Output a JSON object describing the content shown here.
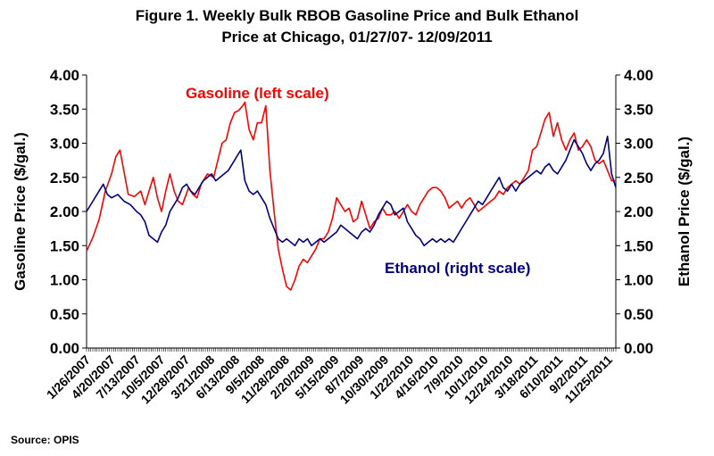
{
  "page": {
    "title_line1": "Figure 1. Weekly Bulk RBOB Gasoline Price and Bulk Ethanol",
    "title_line2": "Price at Chicago, 01/27/07- 12/09/2011",
    "source": "Source: OPIS"
  },
  "chart_data": {
    "type": "line",
    "title": "Figure 1. Weekly Bulk RBOB Gasoline Price and Bulk Ethanol Price at Chicago, 01/27/07- 12/09/2011",
    "ylabel_left": "Gasoline Price ($/gal.)",
    "ylabel_right": "Ethanol Price ($/gal.)",
    "ylim": [
      0,
      4
    ],
    "yticks": [
      "0.00",
      "0.50",
      "1.00",
      "1.50",
      "2.00",
      "2.50",
      "3.00",
      "3.50",
      "4.00"
    ],
    "xlim": [
      "2007-01-26",
      "2011-12-09"
    ],
    "xtick_labels": [
      "1/26/2007",
      "4/20/2007",
      "7/13/2007",
      "10/5/2007",
      "12/28/2007",
      "3/21/2008",
      "6/13/2008",
      "9/5/2008",
      "11/28/2008",
      "2/20/2009",
      "5/15/2009",
      "8/7/2009",
      "10/30/2009",
      "1/22/2010",
      "4/16/2010",
      "7/9/2010",
      "10/1/2010",
      "12/24/2010",
      "3/18/2011",
      "6/10/2011",
      "9/2/2011",
      "11/25/2011"
    ],
    "grid": false,
    "colors": {
      "gasoline": "#ff0000",
      "ethanol": "#000080"
    },
    "annotations": [
      {
        "text": "Gasoline (left scale)",
        "series": "gasoline"
      },
      {
        "text": "Ethanol (right scale)",
        "series": "ethanol"
      }
    ],
    "series": [
      {
        "name": "Gasoline (left scale)",
        "key": "gasoline",
        "color": "#ff0000",
        "points": [
          [
            "2007-01-26",
            1.42
          ],
          [
            "2007-02-16",
            1.62
          ],
          [
            "2007-03-09",
            1.88
          ],
          [
            "2007-03-30",
            2.3
          ],
          [
            "2007-04-20",
            2.55
          ],
          [
            "2007-05-04",
            2.8
          ],
          [
            "2007-05-18",
            2.9
          ],
          [
            "2007-06-01",
            2.58
          ],
          [
            "2007-06-15",
            2.25
          ],
          [
            "2007-07-06",
            2.22
          ],
          [
            "2007-07-27",
            2.3
          ],
          [
            "2007-08-10",
            2.1
          ],
          [
            "2007-08-24",
            2.3
          ],
          [
            "2007-09-07",
            2.5
          ],
          [
            "2007-09-21",
            2.2
          ],
          [
            "2007-10-05",
            2.0
          ],
          [
            "2007-10-19",
            2.3
          ],
          [
            "2007-11-02",
            2.55
          ],
          [
            "2007-11-16",
            2.3
          ],
          [
            "2007-11-30",
            2.15
          ],
          [
            "2007-12-14",
            2.1
          ],
          [
            "2008-01-04",
            2.35
          ],
          [
            "2008-01-18",
            2.25
          ],
          [
            "2008-02-01",
            2.2
          ],
          [
            "2008-02-15",
            2.4
          ],
          [
            "2008-03-07",
            2.55
          ],
          [
            "2008-03-28",
            2.5
          ],
          [
            "2008-04-11",
            2.75
          ],
          [
            "2008-04-25",
            3.0
          ],
          [
            "2008-05-09",
            3.05
          ],
          [
            "2008-05-23",
            3.3
          ],
          [
            "2008-06-06",
            3.45
          ],
          [
            "2008-06-20",
            3.48
          ],
          [
            "2008-07-04",
            3.55
          ],
          [
            "2008-07-11",
            3.6
          ],
          [
            "2008-07-25",
            3.2
          ],
          [
            "2008-08-08",
            3.05
          ],
          [
            "2008-08-22",
            3.3
          ],
          [
            "2008-09-05",
            3.3
          ],
          [
            "2008-09-19",
            3.55
          ],
          [
            "2008-10-03",
            2.6
          ],
          [
            "2008-10-17",
            2.0
          ],
          [
            "2008-10-31",
            1.45
          ],
          [
            "2008-11-14",
            1.15
          ],
          [
            "2008-11-28",
            0.9
          ],
          [
            "2008-12-12",
            0.85
          ],
          [
            "2008-12-26",
            1.0
          ],
          [
            "2009-01-09",
            1.2
          ],
          [
            "2009-01-23",
            1.3
          ],
          [
            "2009-02-06",
            1.25
          ],
          [
            "2009-02-20",
            1.35
          ],
          [
            "2009-03-06",
            1.45
          ],
          [
            "2009-03-20",
            1.6
          ],
          [
            "2009-04-03",
            1.6
          ],
          [
            "2009-04-17",
            1.7
          ],
          [
            "2009-05-01",
            1.9
          ],
          [
            "2009-05-15",
            2.2
          ],
          [
            "2009-05-29",
            2.1
          ],
          [
            "2009-06-12",
            2.0
          ],
          [
            "2009-06-26",
            2.05
          ],
          [
            "2009-07-10",
            1.85
          ],
          [
            "2009-07-24",
            1.9
          ],
          [
            "2009-08-07",
            2.15
          ],
          [
            "2009-08-21",
            1.95
          ],
          [
            "2009-09-04",
            1.75
          ],
          [
            "2009-09-18",
            1.85
          ],
          [
            "2009-10-02",
            1.9
          ],
          [
            "2009-10-16",
            2.05
          ],
          [
            "2009-10-30",
            1.95
          ],
          [
            "2009-11-13",
            1.95
          ],
          [
            "2009-11-27",
            2.0
          ],
          [
            "2009-12-11",
            1.9
          ],
          [
            "2009-12-25",
            2.0
          ],
          [
            "2010-01-08",
            2.1
          ],
          [
            "2010-01-22",
            2.0
          ],
          [
            "2010-02-05",
            1.95
          ],
          [
            "2010-02-19",
            2.1
          ],
          [
            "2010-03-05",
            2.2
          ],
          [
            "2010-03-19",
            2.3
          ],
          [
            "2010-04-02",
            2.35
          ],
          [
            "2010-04-16",
            2.35
          ],
          [
            "2010-04-30",
            2.3
          ],
          [
            "2010-05-14",
            2.2
          ],
          [
            "2010-05-28",
            2.05
          ],
          [
            "2010-06-11",
            2.1
          ],
          [
            "2010-06-25",
            2.15
          ],
          [
            "2010-07-09",
            2.05
          ],
          [
            "2010-07-23",
            2.15
          ],
          [
            "2010-08-06",
            2.2
          ],
          [
            "2010-08-20",
            2.1
          ],
          [
            "2010-09-03",
            2.0
          ],
          [
            "2010-09-17",
            2.05
          ],
          [
            "2010-10-01",
            2.1
          ],
          [
            "2010-10-15",
            2.15
          ],
          [
            "2010-10-29",
            2.2
          ],
          [
            "2010-11-12",
            2.3
          ],
          [
            "2010-11-26",
            2.25
          ],
          [
            "2010-12-10",
            2.35
          ],
          [
            "2010-12-24",
            2.4
          ],
          [
            "2011-01-07",
            2.45
          ],
          [
            "2011-01-21",
            2.4
          ],
          [
            "2011-02-04",
            2.5
          ],
          [
            "2011-02-18",
            2.6
          ],
          [
            "2011-03-04",
            2.9
          ],
          [
            "2011-03-18",
            2.95
          ],
          [
            "2011-04-01",
            3.15
          ],
          [
            "2011-04-15",
            3.35
          ],
          [
            "2011-04-29",
            3.45
          ],
          [
            "2011-05-13",
            3.1
          ],
          [
            "2011-05-27",
            3.3
          ],
          [
            "2011-06-10",
            3.05
          ],
          [
            "2011-06-24",
            2.9
          ],
          [
            "2011-07-08",
            3.05
          ],
          [
            "2011-07-22",
            3.15
          ],
          [
            "2011-08-05",
            2.9
          ],
          [
            "2011-08-19",
            2.95
          ],
          [
            "2011-09-02",
            3.05
          ],
          [
            "2011-09-16",
            2.95
          ],
          [
            "2011-09-30",
            2.75
          ],
          [
            "2011-10-14",
            2.7
          ],
          [
            "2011-10-28",
            2.75
          ],
          [
            "2011-11-11",
            2.6
          ],
          [
            "2011-11-25",
            2.45
          ],
          [
            "2011-12-09",
            2.45
          ]
        ]
      },
      {
        "name": "Ethanol (right scale)",
        "key": "ethanol",
        "color": "#000080",
        "points": [
          [
            "2007-01-26",
            2.0
          ],
          [
            "2007-02-16",
            2.15
          ],
          [
            "2007-03-09",
            2.3
          ],
          [
            "2007-03-23",
            2.4
          ],
          [
            "2007-04-06",
            2.25
          ],
          [
            "2007-04-20",
            2.2
          ],
          [
            "2007-05-11",
            2.25
          ],
          [
            "2007-06-01",
            2.15
          ],
          [
            "2007-06-22",
            2.1
          ],
          [
            "2007-07-13",
            2.0
          ],
          [
            "2007-07-27",
            1.95
          ],
          [
            "2007-08-10",
            1.85
          ],
          [
            "2007-08-24",
            1.65
          ],
          [
            "2007-09-07",
            1.6
          ],
          [
            "2007-09-21",
            1.55
          ],
          [
            "2007-10-05",
            1.7
          ],
          [
            "2007-10-19",
            1.8
          ],
          [
            "2007-11-02",
            2.0
          ],
          [
            "2007-11-16",
            2.1
          ],
          [
            "2007-11-30",
            2.2
          ],
          [
            "2007-12-14",
            2.35
          ],
          [
            "2007-12-28",
            2.4
          ],
          [
            "2008-01-11",
            2.3
          ],
          [
            "2008-01-25",
            2.25
          ],
          [
            "2008-02-08",
            2.35
          ],
          [
            "2008-02-22",
            2.45
          ],
          [
            "2008-03-07",
            2.5
          ],
          [
            "2008-03-21",
            2.55
          ],
          [
            "2008-04-04",
            2.45
          ],
          [
            "2008-04-18",
            2.5
          ],
          [
            "2008-05-02",
            2.55
          ],
          [
            "2008-05-16",
            2.6
          ],
          [
            "2008-06-06",
            2.75
          ],
          [
            "2008-06-20",
            2.85
          ],
          [
            "2008-06-27",
            2.9
          ],
          [
            "2008-07-11",
            2.45
          ],
          [
            "2008-07-25",
            2.3
          ],
          [
            "2008-08-08",
            2.25
          ],
          [
            "2008-08-22",
            2.3
          ],
          [
            "2008-09-05",
            2.2
          ],
          [
            "2008-09-19",
            2.1
          ],
          [
            "2008-10-03",
            1.9
          ],
          [
            "2008-10-17",
            1.75
          ],
          [
            "2008-10-31",
            1.6
          ],
          [
            "2008-11-14",
            1.55
          ],
          [
            "2008-11-28",
            1.6
          ],
          [
            "2008-12-12",
            1.55
          ],
          [
            "2008-12-26",
            1.5
          ],
          [
            "2009-01-09",
            1.6
          ],
          [
            "2009-01-23",
            1.55
          ],
          [
            "2009-02-06",
            1.6
          ],
          [
            "2009-02-20",
            1.5
          ],
          [
            "2009-03-06",
            1.55
          ],
          [
            "2009-03-20",
            1.6
          ],
          [
            "2009-04-03",
            1.55
          ],
          [
            "2009-04-17",
            1.6
          ],
          [
            "2009-05-01",
            1.65
          ],
          [
            "2009-05-15",
            1.7
          ],
          [
            "2009-05-29",
            1.8
          ],
          [
            "2009-06-12",
            1.75
          ],
          [
            "2009-06-26",
            1.7
          ],
          [
            "2009-07-10",
            1.65
          ],
          [
            "2009-07-24",
            1.6
          ],
          [
            "2009-08-07",
            1.7
          ],
          [
            "2009-08-21",
            1.75
          ],
          [
            "2009-09-04",
            1.7
          ],
          [
            "2009-09-18",
            1.8
          ],
          [
            "2009-10-02",
            1.95
          ],
          [
            "2009-10-16",
            2.05
          ],
          [
            "2009-10-30",
            2.15
          ],
          [
            "2009-11-13",
            2.1
          ],
          [
            "2009-11-27",
            1.95
          ],
          [
            "2009-12-11",
            2.0
          ],
          [
            "2009-12-25",
            2.05
          ],
          [
            "2010-01-08",
            1.85
          ],
          [
            "2010-01-22",
            1.75
          ],
          [
            "2010-02-05",
            1.65
          ],
          [
            "2010-02-19",
            1.6
          ],
          [
            "2010-03-05",
            1.5
          ],
          [
            "2010-03-19",
            1.55
          ],
          [
            "2010-04-02",
            1.6
          ],
          [
            "2010-04-16",
            1.55
          ],
          [
            "2010-04-30",
            1.6
          ],
          [
            "2010-05-14",
            1.55
          ],
          [
            "2010-05-28",
            1.6
          ],
          [
            "2010-06-11",
            1.55
          ],
          [
            "2010-06-25",
            1.65
          ],
          [
            "2010-07-09",
            1.75
          ],
          [
            "2010-07-23",
            1.85
          ],
          [
            "2010-08-06",
            1.95
          ],
          [
            "2010-08-20",
            2.05
          ],
          [
            "2010-09-03",
            2.15
          ],
          [
            "2010-09-17",
            2.1
          ],
          [
            "2010-10-01",
            2.2
          ],
          [
            "2010-10-15",
            2.3
          ],
          [
            "2010-10-29",
            2.4
          ],
          [
            "2010-11-12",
            2.5
          ],
          [
            "2010-11-26",
            2.35
          ],
          [
            "2010-12-10",
            2.3
          ],
          [
            "2010-12-24",
            2.4
          ],
          [
            "2011-01-07",
            2.3
          ],
          [
            "2011-01-21",
            2.4
          ],
          [
            "2011-02-04",
            2.45
          ],
          [
            "2011-02-18",
            2.5
          ],
          [
            "2011-03-04",
            2.55
          ],
          [
            "2011-03-18",
            2.6
          ],
          [
            "2011-04-01",
            2.55
          ],
          [
            "2011-04-15",
            2.65
          ],
          [
            "2011-04-29",
            2.7
          ],
          [
            "2011-05-13",
            2.6
          ],
          [
            "2011-05-27",
            2.55
          ],
          [
            "2011-06-10",
            2.65
          ],
          [
            "2011-06-24",
            2.75
          ],
          [
            "2011-07-08",
            2.9
          ],
          [
            "2011-07-22",
            3.05
          ],
          [
            "2011-08-05",
            2.95
          ],
          [
            "2011-08-19",
            2.85
          ],
          [
            "2011-09-02",
            2.7
          ],
          [
            "2011-09-16",
            2.6
          ],
          [
            "2011-09-30",
            2.7
          ],
          [
            "2011-10-14",
            2.75
          ],
          [
            "2011-10-28",
            2.85
          ],
          [
            "2011-11-11",
            3.1
          ],
          [
            "2011-11-25",
            2.55
          ],
          [
            "2011-12-09",
            2.35
          ]
        ]
      }
    ]
  }
}
